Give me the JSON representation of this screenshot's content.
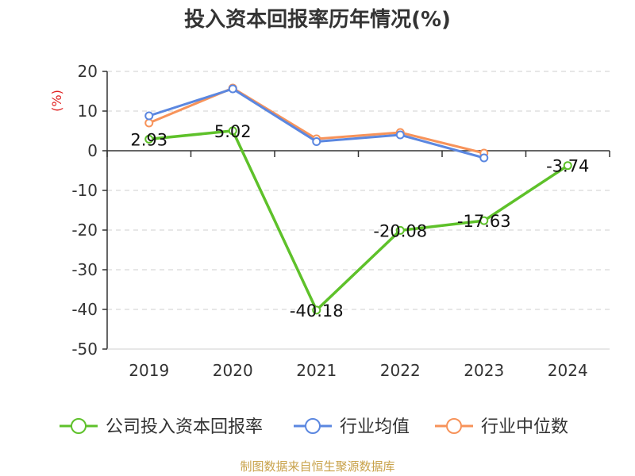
{
  "chart_data": {
    "type": "line",
    "title": "投入资本回报率历年情况(%)",
    "y_unit_label": "(%)",
    "categories": [
      "2019",
      "2020",
      "2021",
      "2022",
      "2023",
      "2024"
    ],
    "ylim": [
      -50,
      20
    ],
    "y_ticks": [
      20,
      10,
      0,
      -10,
      -20,
      -30,
      -40,
      -50
    ],
    "grid": true,
    "legend_position": "bottom",
    "series": [
      {
        "name": "公司投入资本回报率",
        "color": "#5ec12a",
        "values": [
          2.93,
          5.02,
          -40.18,
          -20.08,
          -17.63,
          -3.74
        ],
        "labels": [
          "2.93",
          "5.02",
          "-40.18",
          "-20.08",
          "-17.63",
          "-3.74"
        ]
      },
      {
        "name": "行业均值",
        "color": "#5b87e0",
        "values": [
          8.8,
          15.6,
          2.3,
          4.0,
          -1.8,
          null
        ]
      },
      {
        "name": "行业中位数",
        "color": "#f7935a",
        "values": [
          7.0,
          15.8,
          3.0,
          4.6,
          -0.6,
          null
        ]
      }
    ],
    "source": "制图数据来自恒生聚源数据库",
    "source_color": "#c8a24a",
    "unit_color": "#e02020"
  }
}
